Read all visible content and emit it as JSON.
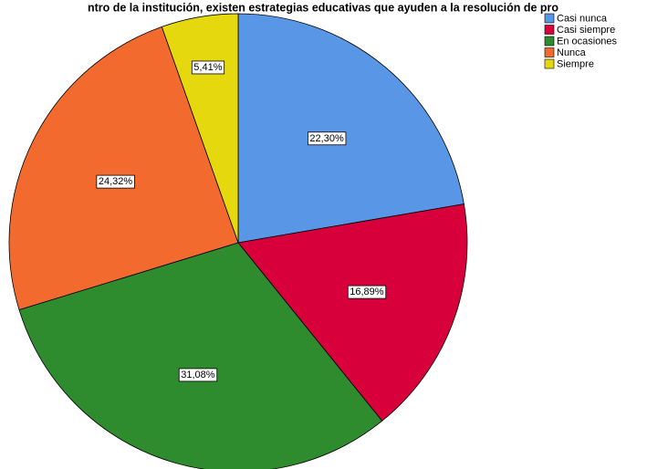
{
  "chart_data": {
    "type": "pie",
    "title": "ntro de la institución, existen estrategias educativas que ayuden a la resolución de pro",
    "categories": [
      "Casi nunca",
      "Casi siempre",
      "En ocasiones",
      "Nunca",
      "Siempre"
    ],
    "values": [
      22.3,
      16.89,
      31.08,
      24.32,
      5.41
    ],
    "value_labels": [
      "22,30%",
      "16,89%",
      "31,08%",
      "24,32%",
      "5,41%"
    ],
    "colors": [
      "#5a96e6",
      "#d8003a",
      "#2e8b2e",
      "#f26a2e",
      "#e6d80e"
    ],
    "legend": "top-right"
  }
}
